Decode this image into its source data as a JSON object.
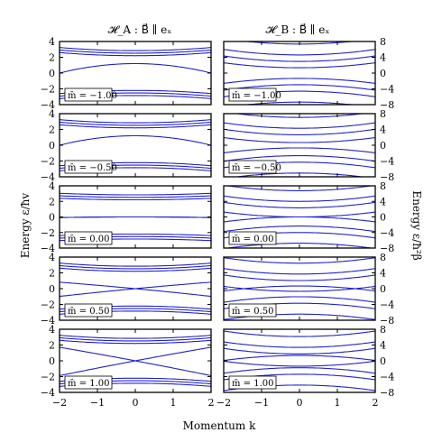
{
  "chart_data": {
    "type": "line",
    "columns": [
      {
        "title": "𝓗_A : B⃗ ∥ eₓ",
        "ylabel": "Energy ε/ħv",
        "ylim": [
          -4,
          4
        ],
        "yticks": [
          "4",
          "2",
          "0",
          "−2",
          "−4"
        ],
        "ytick_values": [
          4,
          2,
          0,
          -2,
          -4
        ]
      },
      {
        "title": "𝓗_B : B⃗ ∥ eₓ",
        "ylabel": "Energy ε/ħ²β",
        "ylim": [
          -8,
          8
        ],
        "yticks": [
          "8",
          "4",
          "0",
          "−4",
          "−8"
        ],
        "ytick_values": [
          8,
          4,
          0,
          -4,
          -8
        ]
      }
    ],
    "xlabel": "Momentum k",
    "xlim": [
      -2,
      2
    ],
    "xticks": [
      "−2",
      "−1",
      "0",
      "1",
      "2"
    ],
    "xtick_values": [
      -2,
      -1,
      0,
      1,
      2
    ],
    "rows": [
      {
        "label": "m̄ = −1.00",
        "m": -1.0
      },
      {
        "label": "m̄ = −0.50",
        "m": -0.5
      },
      {
        "label": "m̄ = 0.00",
        "m": 0.0
      },
      {
        "label": "m̄ = 0.50",
        "m": 0.5
      },
      {
        "label": "m̄ = 1.00",
        "m": 1.0
      }
    ],
    "line_color": "#2222cc"
  }
}
